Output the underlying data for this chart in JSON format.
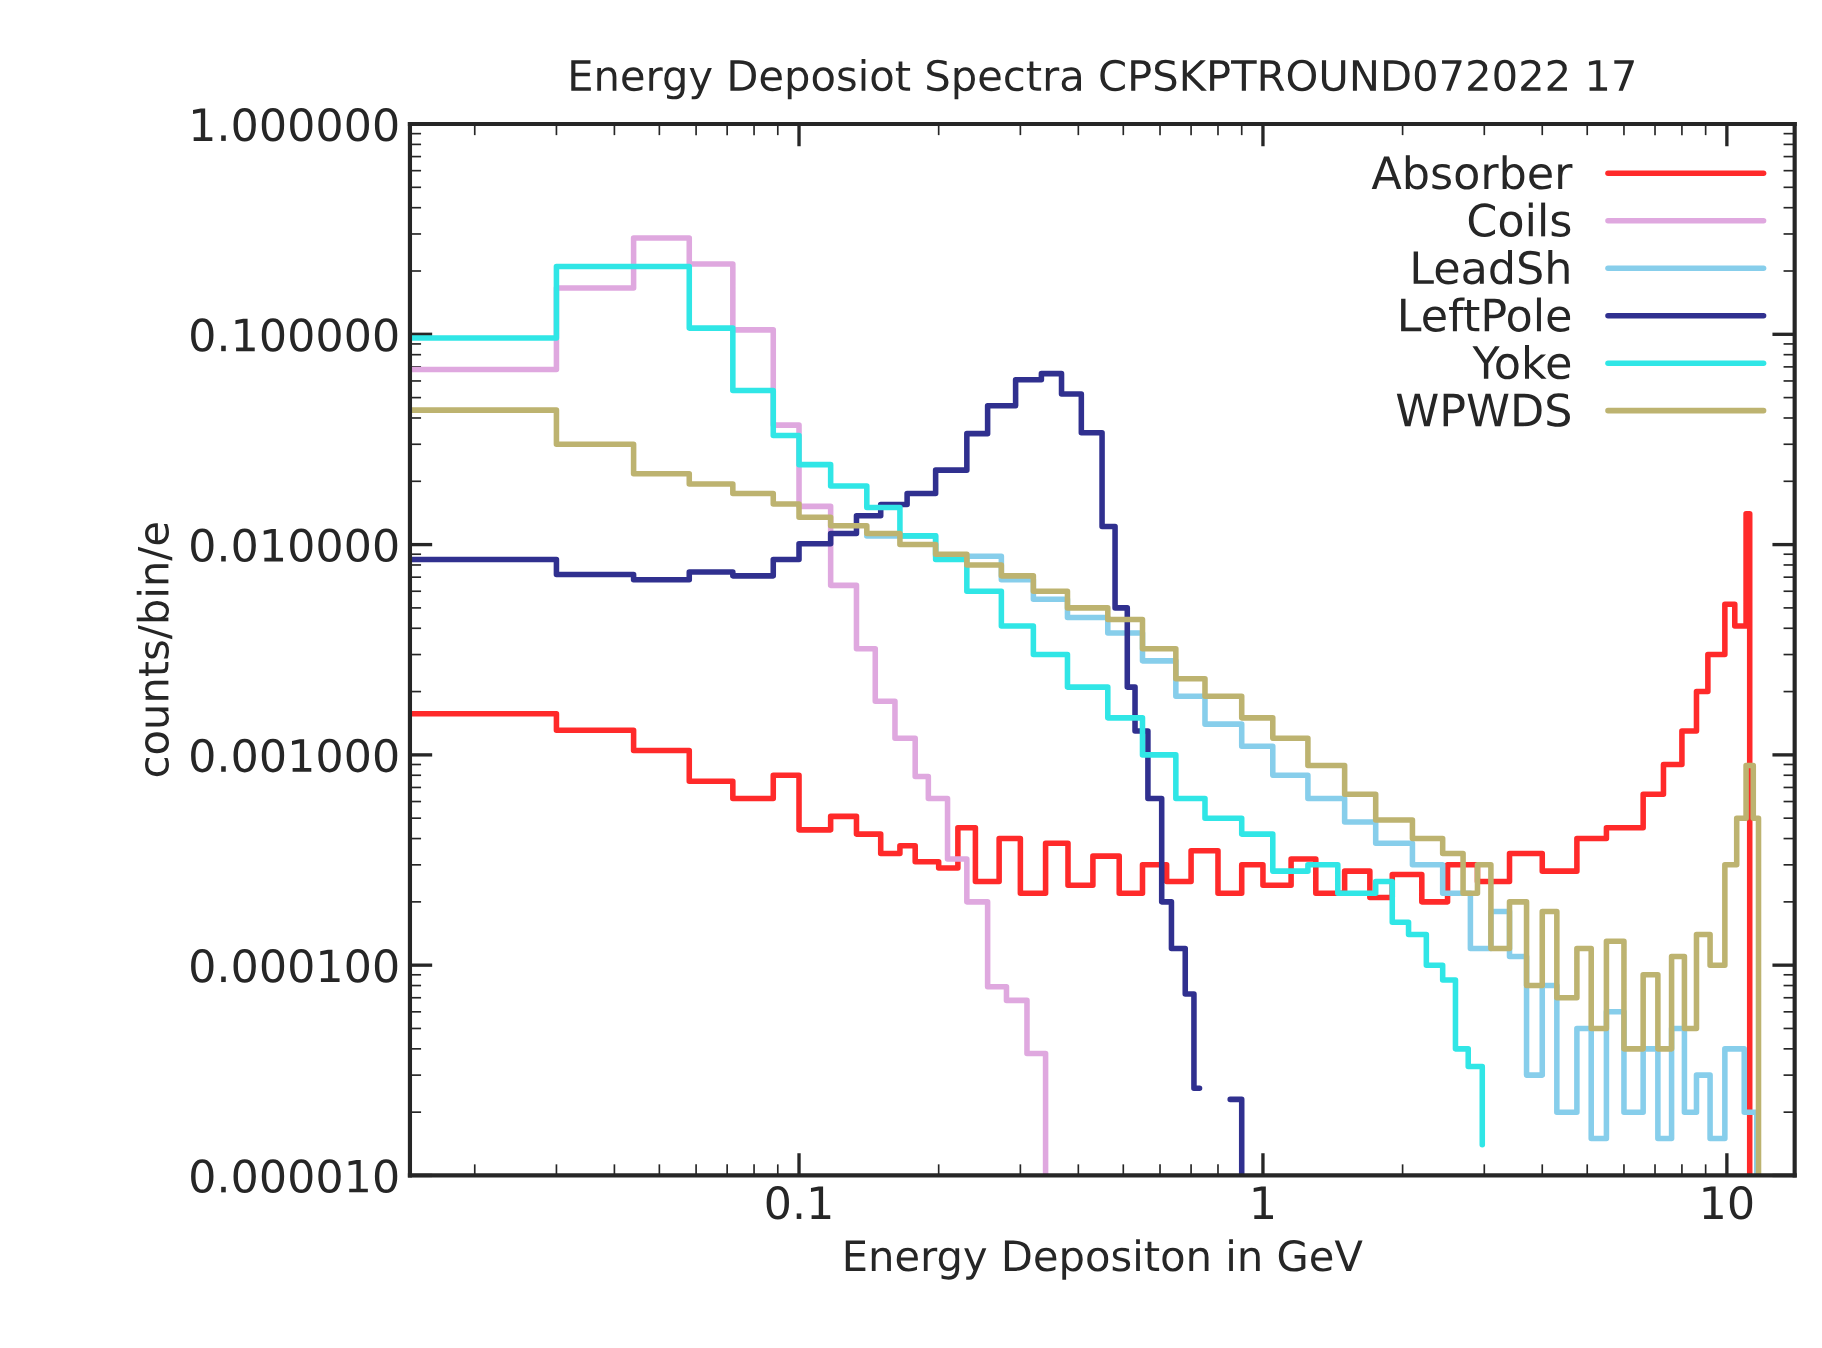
{
  "chart_data": {
    "type": "step",
    "title": "Energy Deposiot Spectra CPSKPTROUND072022 17",
    "xlabel": "Energy Depositon in GeV",
    "ylabel": "counts/bin/e",
    "log": "xy",
    "legend": "top right",
    "grid": false,
    "xlim": [
      0.0145,
      14
    ],
    "xticks": [
      0.1,
      1,
      10
    ],
    "ylim": [
      1e-05,
      1
    ],
    "yticks": [
      {
        "value": 1,
        "label": "1.000000"
      },
      {
        "value": 0.1,
        "label": "0.100000"
      },
      {
        "value": 0.01,
        "label": "0.010000"
      },
      {
        "value": 0.001,
        "label": "0.001000"
      },
      {
        "value": 0.0001,
        "label": "0.000100"
      },
      {
        "value": 1e-05,
        "label": "0.000010"
      }
    ],
    "series": [
      {
        "name": "Absorber",
        "color": "#ff2a2a",
        "x": [
          0.0145,
          0.03,
          0.044,
          0.058,
          0.072,
          0.088,
          0.1,
          0.117,
          0.133,
          0.15,
          0.165,
          0.178,
          0.2,
          0.22,
          0.24,
          0.27,
          0.3,
          0.34,
          0.38,
          0.43,
          0.49,
          0.55,
          0.62,
          0.7,
          0.8,
          0.9,
          1.0,
          1.15,
          1.3,
          1.5,
          1.7,
          1.9,
          2.2,
          2.5,
          2.9,
          3.4,
          4.0,
          4.75,
          5.5,
          6.6,
          7.3,
          8.0,
          8.6,
          9.1,
          9.9,
          10.4,
          11.0,
          11.2
        ],
        "values": [
          0.00157,
          0.00131,
          0.00105,
          0.00075,
          0.00062,
          0.0008,
          0.00044,
          0.00051,
          0.00042,
          0.00034,
          0.00037,
          0.00031,
          0.00029,
          0.00045,
          0.00025,
          0.0004,
          0.00022,
          0.00038,
          0.00024,
          0.00033,
          0.00022,
          0.0003,
          0.00025,
          0.00035,
          0.00022,
          0.0003,
          0.00024,
          0.00032,
          0.00022,
          0.00028,
          0.00021,
          0.00027,
          0.0002,
          0.0003,
          0.00025,
          0.00034,
          0.00028,
          0.0004,
          0.00045,
          0.00065,
          0.0009,
          0.0013,
          0.002,
          0.003,
          0.0052,
          0.0041,
          0.014,
          1e-05
        ]
      },
      {
        "name": "Coils",
        "color": "#dfa8df",
        "x": [
          0.0145,
          0.03,
          0.044,
          0.058,
          0.072,
          0.088,
          0.1,
          0.117,
          0.133,
          0.146,
          0.161,
          0.178,
          0.19,
          0.209,
          0.23,
          0.255,
          0.28,
          0.31,
          0.34
        ],
        "values": [
          0.068,
          0.166,
          0.287,
          0.216,
          0.105,
          0.037,
          0.0152,
          0.0064,
          0.0032,
          0.0018,
          0.0012,
          0.00079,
          0.00062,
          0.00032,
          0.0002,
          7.9e-05,
          6.8e-05,
          3.8e-05,
          1e-05
        ]
      },
      {
        "name": "LeadSh",
        "color": "#87ceeb",
        "x": [
          0.14,
          0.197,
          0.273,
          0.32,
          0.379,
          0.463,
          0.55,
          0.649,
          0.75,
          0.9,
          1.05,
          1.25,
          1.5,
          1.75,
          2.1,
          2.44,
          2.8,
          3.1,
          3.4,
          3.7,
          4.0,
          4.3,
          4.75,
          5.1,
          5.5,
          6.0,
          6.6,
          7.1,
          7.6,
          8.1,
          8.6,
          9.2,
          9.9,
          10.9,
          11.6
        ],
        "values": [
          0.011,
          0.0088,
          0.0068,
          0.0055,
          0.0045,
          0.0038,
          0.0028,
          0.0019,
          0.0014,
          0.0011,
          0.0008,
          0.00062,
          0.00048,
          0.00038,
          0.0003,
          0.00022,
          0.00012,
          0.00018,
          0.00011,
          3e-05,
          8e-05,
          2e-05,
          5e-05,
          1.5e-05,
          6e-05,
          2e-05,
          4e-05,
          1.5e-05,
          5e-05,
          2e-05,
          3e-05,
          1.5e-05,
          4e-05,
          2e-05,
          1e-05
        ]
      },
      {
        "name": "LeftPole",
        "color": "#30308f",
        "x": [
          0.0145,
          0.03,
          0.044,
          0.058,
          0.072,
          0.088,
          0.1,
          0.117,
          0.133,
          0.15,
          0.171,
          0.197,
          0.23,
          0.255,
          0.293,
          0.333,
          0.368,
          0.406,
          0.45,
          0.48,
          0.51,
          0.53,
          0.565,
          0.605,
          0.635,
          0.68,
          0.71,
          0.73,
          0.85,
          0.9
        ],
        "values": [
          0.0085,
          0.0072,
          0.0068,
          0.0074,
          0.0071,
          0.0085,
          0.0101,
          0.0113,
          0.0137,
          0.0155,
          0.0175,
          0.0226,
          0.0337,
          0.0457,
          0.0608,
          0.065,
          0.052,
          0.034,
          0.0122,
          0.005,
          0.0021,
          0.0013,
          0.00062,
          0.0002,
          0.00012,
          7.3e-05,
          2.6e-05,
          null,
          2.3e-05,
          1e-05
        ]
      },
      {
        "name": "Yoke",
        "color": "#30e6e6",
        "x": [
          0.0145,
          0.03,
          0.058,
          0.072,
          0.088,
          0.1,
          0.117,
          0.14,
          0.165,
          0.197,
          0.23,
          0.273,
          0.32,
          0.379,
          0.463,
          0.55,
          0.649,
          0.75,
          0.9,
          1.05,
          1.25,
          1.45,
          1.75,
          1.9,
          2.06,
          2.25,
          2.44,
          2.6,
          2.77,
          2.97
        ],
        "values": [
          0.096,
          0.21,
          0.107,
          0.054,
          0.033,
          0.024,
          0.019,
          0.015,
          0.011,
          0.0085,
          0.006,
          0.0041,
          0.003,
          0.0021,
          0.0015,
          0.001,
          0.00062,
          0.0005,
          0.00042,
          0.00028,
          0.0003,
          0.00022,
          0.00025,
          0.00016,
          0.00014,
          0.0001,
          8.5e-05,
          4e-05,
          3.3e-05,
          1.4e-05
        ]
      },
      {
        "name": "WPWDS",
        "color": "#bdb370",
        "x": [
          0.0145,
          0.03,
          0.044,
          0.058,
          0.072,
          0.088,
          0.1,
          0.117,
          0.14,
          0.165,
          0.197,
          0.23,
          0.273,
          0.32,
          0.379,
          0.463,
          0.55,
          0.649,
          0.75,
          0.9,
          1.05,
          1.25,
          1.5,
          1.75,
          2.1,
          2.44,
          2.7,
          2.9,
          3.1,
          3.4,
          3.7,
          4.0,
          4.3,
          4.75,
          5.1,
          5.5,
          6.0,
          6.6,
          7.1,
          7.6,
          8.1,
          8.6,
          9.2,
          9.9,
          10.5,
          11.0,
          11.4,
          11.7
        ],
        "values": [
          0.0436,
          0.03,
          0.0217,
          0.0194,
          0.0175,
          0.0156,
          0.0135,
          0.0123,
          0.0113,
          0.01,
          0.009,
          0.008,
          0.0071,
          0.006,
          0.005,
          0.0044,
          0.0032,
          0.0023,
          0.0019,
          0.0015,
          0.0012,
          0.00089,
          0.00065,
          0.00049,
          0.0004,
          0.00034,
          0.00022,
          0.0003,
          0.00012,
          0.0002,
          8e-05,
          0.00018,
          7e-05,
          0.00012,
          5e-05,
          0.00013,
          4e-05,
          9e-05,
          4e-05,
          0.00011,
          5e-05,
          0.00014,
          0.0001,
          0.0003,
          0.0005,
          0.00089,
          0.0005,
          1e-05
        ]
      }
    ]
  }
}
